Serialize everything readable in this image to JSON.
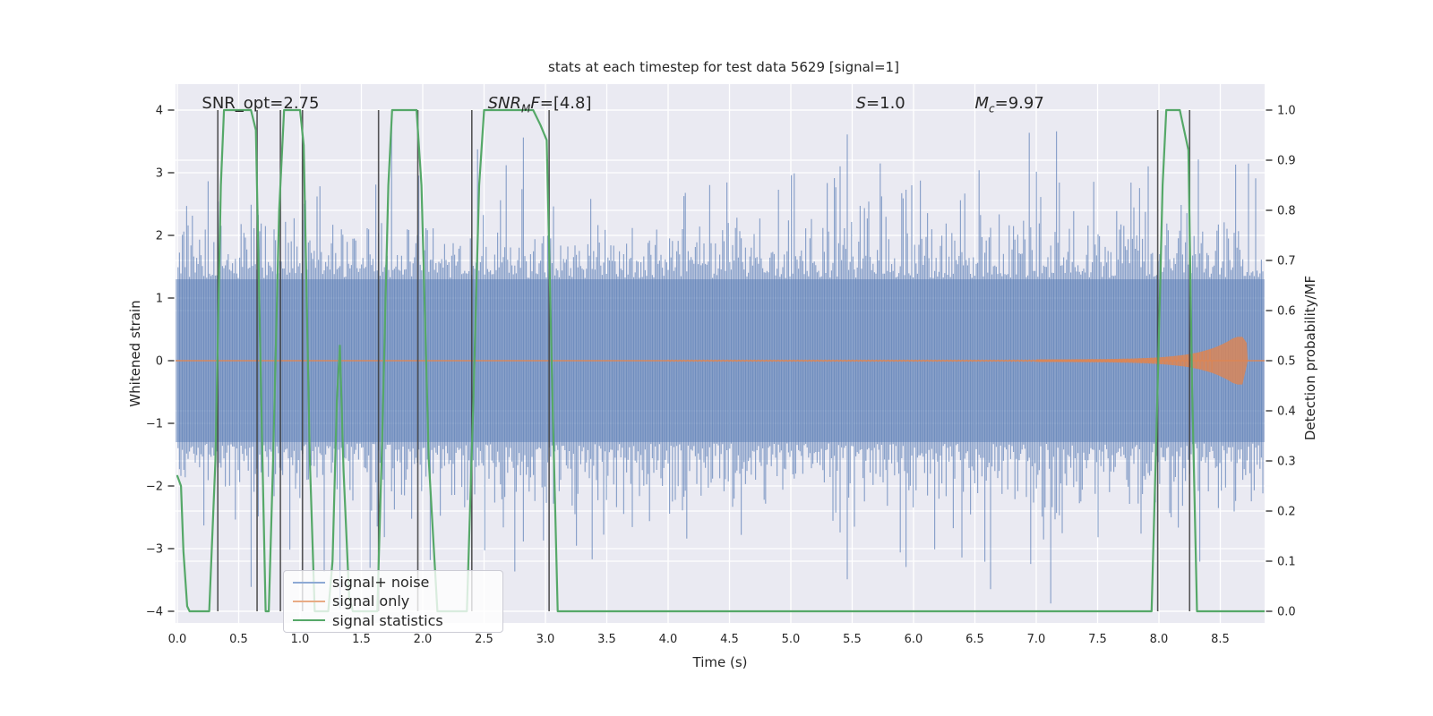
{
  "title": "stats at each timestep for test data 5629 [signal=1]",
  "axes": {
    "xlabel": "Time (s)",
    "ylabel_left": "Whitened strain",
    "ylabel_right": "Detection probability/MF",
    "x_ticks": [
      "0.0",
      "0.5",
      "1.0",
      "1.5",
      "2.0",
      "2.5",
      "3.0",
      "3.5",
      "4.0",
      "4.5",
      "5.0",
      "5.5",
      "6.0",
      "6.5",
      "7.0",
      "7.5",
      "8.0",
      "8.5"
    ],
    "x_tick_values": [
      0,
      0.5,
      1,
      1.5,
      2,
      2.5,
      3,
      3.5,
      4,
      4.5,
      5,
      5.5,
      6,
      6.5,
      7,
      7.5,
      8,
      8.5
    ],
    "yleft_ticks": [
      "4",
      "3",
      "2",
      "1",
      "0",
      "−1",
      "−2",
      "−3",
      "−4"
    ],
    "yleft_tick_values": [
      4,
      3,
      2,
      1,
      0,
      -1,
      -2,
      -3,
      -4
    ],
    "yright_ticks": [
      "1.0",
      "0.9",
      "0.8",
      "0.7",
      "0.6",
      "0.5",
      "0.4",
      "0.3",
      "0.2",
      "0.1",
      "0.0"
    ],
    "yright_tick_values": [
      1.0,
      0.9,
      0.8,
      0.7,
      0.6,
      0.5,
      0.4,
      0.3,
      0.2,
      0.1,
      0.0
    ]
  },
  "annotations": {
    "snr_opt": {
      "text": "SNR_opt=2.75",
      "t": 0.2
    },
    "snr_mf": {
      "lead": "SNR",
      "sub": "M",
      "lead2": "F",
      "tail": "=[4.8]",
      "t": 2.53
    },
    "s": {
      "lead": "S",
      "tail": "=1.0",
      "t": 5.53
    },
    "mc": {
      "lead": "M",
      "sub": "c",
      "tail": "=9.97",
      "t": 6.5
    },
    "y_strain": 4.1
  },
  "legend": {
    "items": [
      {
        "label": "signal+ noise",
        "color": "#8da9d4"
      },
      {
        "label": "signal only",
        "color": "#e8ab85"
      },
      {
        "label": "signal statistics",
        "color": "#55a868"
      }
    ]
  },
  "colors": {
    "axes_background": "#eaeaf2",
    "grid": "#ffffff",
    "noise": "#4c72b0",
    "signal": "#dd8452",
    "statistic": "#55a868",
    "event_marker": "#3b3b3b",
    "text": "#262626"
  },
  "chart_data": {
    "type": "line",
    "title": "stats at each timestep for test data 5629 [signal=1]",
    "xlabel": "Time (s)",
    "ylabel": "Whitened strain",
    "ylabel2": "Detection probability/MF",
    "xlim": [
      0,
      8.86
    ],
    "ylim_left": [
      -4.3,
      4.3
    ],
    "ylim_right": [
      -0.02,
      1.05
    ],
    "grid": true,
    "legend_position": "lower left",
    "series": [
      {
        "name": "signal+ noise",
        "type": "noise_band",
        "color": "#4c72b0",
        "opacity": 0.62,
        "mean": 0,
        "core_halfwidth": 1.3,
        "typical_peak": 2.3,
        "max_peak": 3.9,
        "seed": 424242
      },
      {
        "name": "signal only",
        "type": "chirp",
        "color": "#dd8452",
        "center": 0,
        "envelope": {
          "base": 0.02,
          "scale": 0.36,
          "tau": 0.26,
          "t_ref": 8.62,
          "max": 0.38,
          "end_t": 8.7
        },
        "ripple_range": [
          4.0,
          8.44
        ]
      },
      {
        "name": "signal statistics",
        "type": "line",
        "color": "#55a868",
        "yaxis": "right",
        "points": [
          [
            0,
            0.27
          ],
          [
            0.03,
            0.25
          ],
          [
            0.05,
            0.12
          ],
          [
            0.08,
            0.01
          ],
          [
            0.1,
            0
          ],
          [
            0.26,
            0
          ],
          [
            0.31,
            0.3
          ],
          [
            0.355,
            0.85
          ],
          [
            0.38,
            1.0
          ],
          [
            0.6,
            1.0
          ],
          [
            0.64,
            0.96
          ],
          [
            0.69,
            0.35
          ],
          [
            0.72,
            0
          ],
          [
            0.745,
            0
          ],
          [
            0.78,
            0.3
          ],
          [
            0.83,
            0.8
          ],
          [
            0.87,
            1.0
          ],
          [
            1.0,
            1.0
          ],
          [
            1.03,
            0.93
          ],
          [
            1.08,
            0.3
          ],
          [
            1.12,
            0
          ],
          [
            1.23,
            0
          ],
          [
            1.265,
            0.1
          ],
          [
            1.3,
            0.42
          ],
          [
            1.325,
            0.53
          ],
          [
            1.355,
            0.28
          ],
          [
            1.4,
            0.03
          ],
          [
            1.43,
            0
          ],
          [
            1.63,
            0
          ],
          [
            1.67,
            0.35
          ],
          [
            1.72,
            0.85
          ],
          [
            1.75,
            1.0
          ],
          [
            1.95,
            1.0
          ],
          [
            1.99,
            0.85
          ],
          [
            2.05,
            0.3
          ],
          [
            2.12,
            0
          ],
          [
            2.36,
            0
          ],
          [
            2.41,
            0.4
          ],
          [
            2.46,
            0.85
          ],
          [
            2.5,
            1.0
          ],
          [
            2.9,
            1.0
          ],
          [
            2.96,
            0.97
          ],
          [
            3.01,
            0.94
          ],
          [
            3.06,
            0.4
          ],
          [
            3.1,
            0
          ],
          [
            7.94,
            0
          ],
          [
            7.99,
            0.45
          ],
          [
            8.03,
            0.85
          ],
          [
            8.06,
            1.0
          ],
          [
            8.17,
            1.0
          ],
          [
            8.24,
            0.92
          ],
          [
            8.27,
            0.45
          ],
          [
            8.31,
            0
          ],
          [
            8.86,
            0
          ]
        ]
      }
    ],
    "event_marker_times": [
      0.33,
      0.65,
      0.84,
      1.02,
      1.64,
      1.96,
      2.4,
      3.03,
      7.99,
      8.25
    ],
    "marker_color": "#3b3b3b"
  }
}
